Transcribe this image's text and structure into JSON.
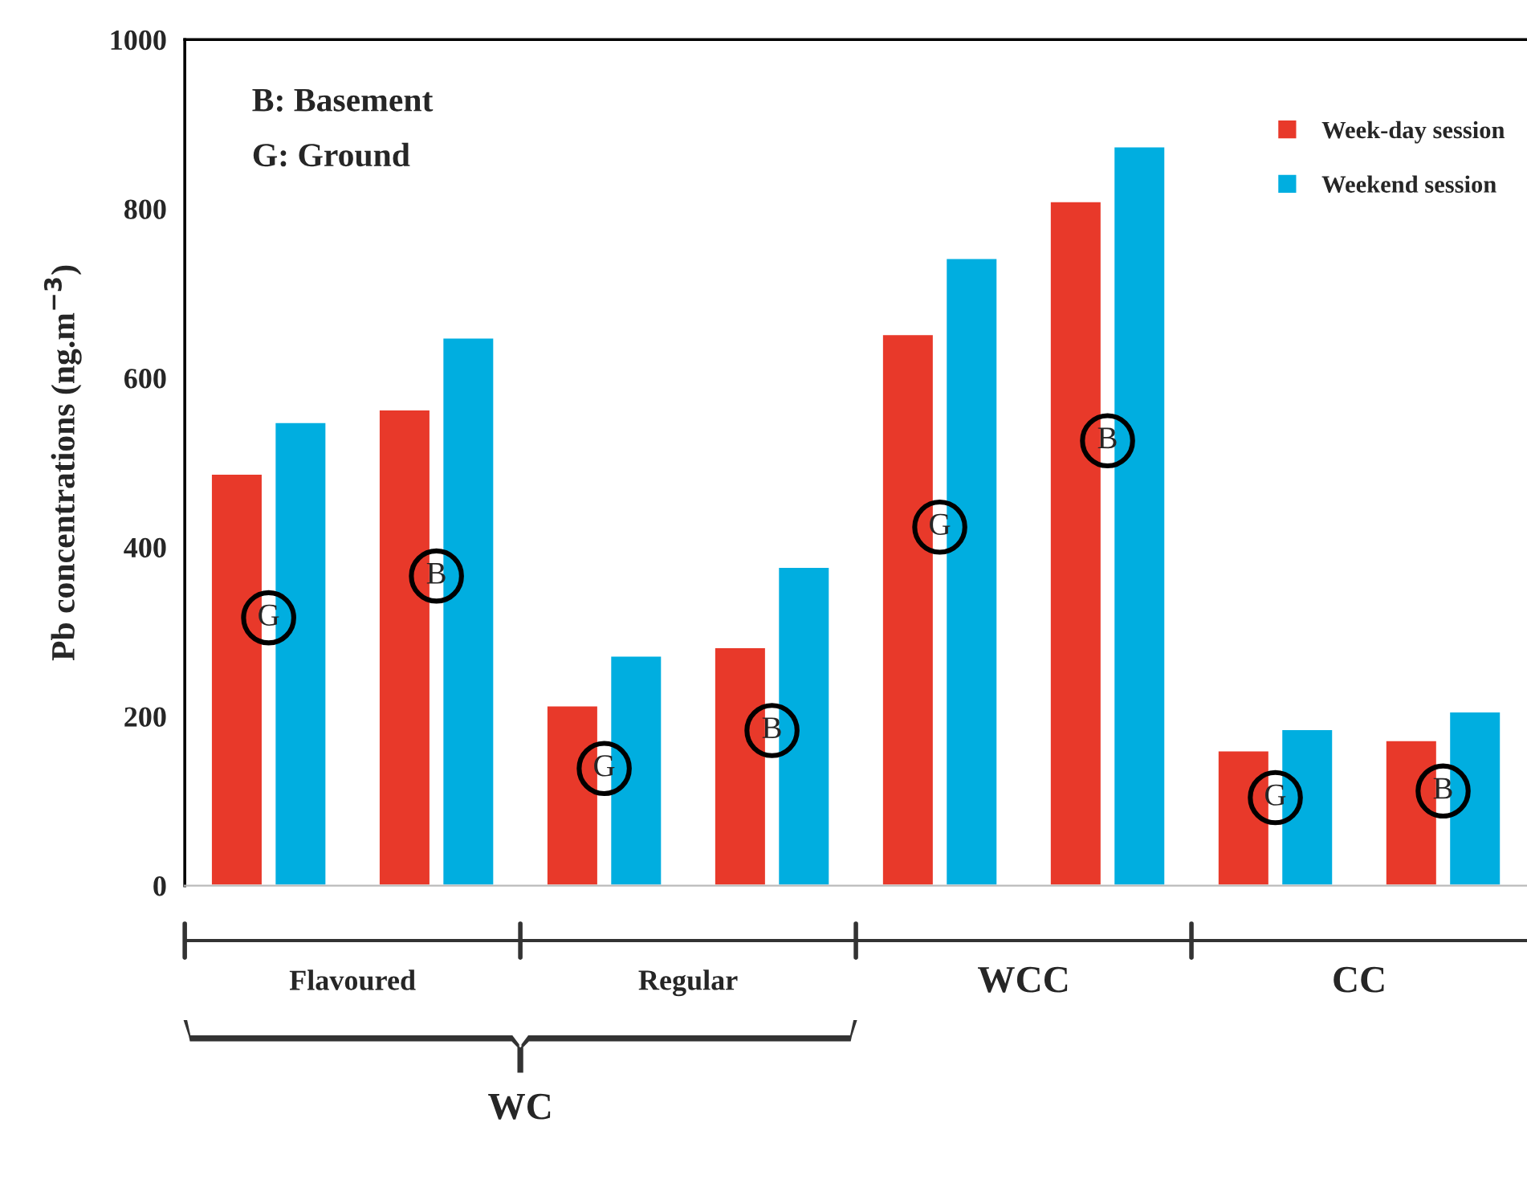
{
  "chart_data": {
    "type": "bar",
    "ylabel": "Pb concentrations (ng.m$^{−3}$)",
    "categories": [
      "G",
      "B",
      "G",
      "B",
      "G",
      "B",
      "G",
      "B"
    ],
    "series": [
      {
        "name": "Week-day session",
        "color": "#e8392a",
        "values": [
          487,
          563,
          213,
          282,
          652,
          809,
          160,
          172
        ]
      },
      {
        "name": "Weekend session",
        "color": "#00aee0",
        "values": [
          548,
          648,
          272,
          377,
          742,
          874,
          185,
          206
        ]
      }
    ],
    "ylim": [
      0,
      1000
    ],
    "yticks": [
      0,
      200,
      400,
      600,
      800,
      1000
    ],
    "grid": false,
    "legend": "top right",
    "annotations": [
      "Flavoured",
      "Regular",
      "WCC",
      "CC",
      "WC",
      "B: Basement",
      "G: Ground"
    ]
  }
}
